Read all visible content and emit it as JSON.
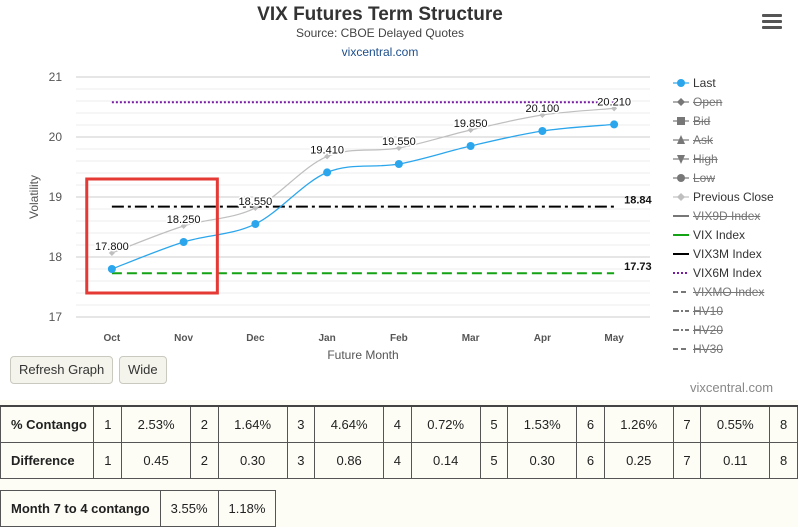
{
  "header": {
    "title": "VIX Futures Term Structure",
    "subtitle": "Source: CBOE Delayed Quotes",
    "link": "vixcentral.com"
  },
  "buttons": {
    "refresh": "Refresh Graph",
    "wide": "Wide"
  },
  "credit": "vixcentral.com",
  "colors": {
    "last": "#2ba6ec",
    "previous_close": "#bfbfbf",
    "vix_index": "#14a314",
    "vix3m": "#000000",
    "vix6m": "#7a1ba3",
    "highlight_box": "#e53935"
  },
  "chart_data": {
    "type": "line",
    "title": "VIX Futures Term Structure",
    "subtitle": "Source: CBOE Delayed Quotes",
    "xlabel": "Future Month",
    "ylabel": "Volatility",
    "categories": [
      "Oct",
      "Nov",
      "Dec",
      "Jan",
      "Feb",
      "Mar",
      "Apr",
      "May"
    ],
    "ylim": [
      17,
      21
    ],
    "yticks": [
      17,
      18,
      19,
      20,
      21
    ],
    "grid": true,
    "legend_position": "right",
    "series": [
      {
        "name": "Last",
        "values": [
          17.8,
          18.25,
          18.55,
          19.41,
          19.55,
          19.85,
          20.1,
          20.21
        ]
      },
      {
        "name": "Previous Close",
        "values": [
          17.8,
          18.25,
          18.55,
          19.41,
          19.55,
          19.85,
          20.1,
          20.21
        ]
      }
    ],
    "data_labels": [
      "17.800",
      "18.250",
      "18.550",
      "19.410",
      "19.550",
      "19.850",
      "20.100",
      "20.210"
    ],
    "reference_lines": [
      {
        "name": "VIX Index",
        "value": 17.73,
        "label": "17.73",
        "style": "dashed"
      },
      {
        "name": "VIX3M Index",
        "value": 18.84,
        "label": "18.84",
        "style": "dash-dot"
      },
      {
        "name": "VIX6M Index",
        "value": 20.58,
        "label": "",
        "style": "dotted"
      }
    ],
    "highlight": {
      "from": "Oct",
      "to": "Nov",
      "ymin": 17.4,
      "ymax": 19.3
    }
  },
  "legend": [
    {
      "label": "Last",
      "symbol": "circle",
      "color": "#2ba6ec",
      "enabled": true
    },
    {
      "label": "Open",
      "symbol": "diamond",
      "color": "#777777",
      "enabled": false
    },
    {
      "label": "Bid",
      "symbol": "square",
      "color": "#777777",
      "enabled": false
    },
    {
      "label": "Ask",
      "symbol": "triangle",
      "color": "#777777",
      "enabled": false
    },
    {
      "label": "High",
      "symbol": "triangle-down",
      "color": "#777777",
      "enabled": false
    },
    {
      "label": "Low",
      "symbol": "circle",
      "color": "#777777",
      "enabled": false
    },
    {
      "label": "Previous Close",
      "symbol": "diamond",
      "color": "#bfbfbf",
      "enabled": true
    },
    {
      "label": "VIX9D Index",
      "symbol": "line",
      "color": "#777777",
      "enabled": false
    },
    {
      "label": "VIX Index",
      "symbol": "line",
      "color": "#14a314",
      "enabled": true
    },
    {
      "label": "VIX3M Index",
      "symbol": "line",
      "color": "#000000",
      "enabled": true
    },
    {
      "label": "VIX6M Index",
      "symbol": "dotted",
      "color": "#7a1ba3",
      "enabled": true
    },
    {
      "label": "VIXMO Index",
      "symbol": "dashed",
      "color": "#777777",
      "enabled": false
    },
    {
      "label": "HV10",
      "symbol": "dash-dot",
      "color": "#777777",
      "enabled": false
    },
    {
      "label": "HV20",
      "symbol": "dash-dot",
      "color": "#777777",
      "enabled": false
    },
    {
      "label": "HV30",
      "symbol": "dashed",
      "color": "#777777",
      "enabled": false
    }
  ],
  "contango_table": {
    "rows": [
      {
        "label": "% Contango",
        "cells": [
          [
            "1",
            "2.53%"
          ],
          [
            "2",
            "1.64%"
          ],
          [
            "3",
            "4.64%"
          ],
          [
            "4",
            "0.72%"
          ],
          [
            "5",
            "1.53%"
          ],
          [
            "6",
            "1.26%"
          ],
          [
            "7",
            "0.55%"
          ],
          [
            "8",
            ""
          ]
        ]
      },
      {
        "label": "Difference",
        "cells": [
          [
            "1",
            "0.45"
          ],
          [
            "2",
            "0.30"
          ],
          [
            "3",
            "0.86"
          ],
          [
            "4",
            "0.14"
          ],
          [
            "5",
            "0.30"
          ],
          [
            "6",
            "0.25"
          ],
          [
            "7",
            "0.11"
          ],
          [
            "8",
            ""
          ]
        ]
      }
    ]
  },
  "month_7_4": {
    "label": "Month 7 to 4 contango",
    "value1": "3.55%",
    "value2": "1.18%"
  }
}
